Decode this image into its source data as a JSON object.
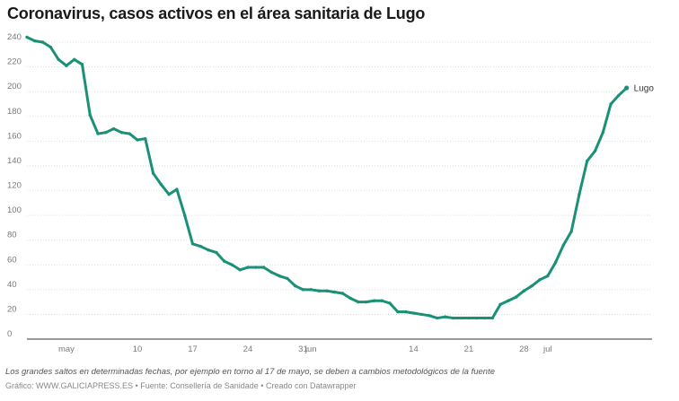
{
  "header": {
    "title": "Coronavirus, casos activos en el área sanitaria de Lugo"
  },
  "footer": {
    "note": "Los grandes saltos en determinadas fechas, por ejemplo en torno al 17 de mayo, se deben a cambios metodológicos de la fuente",
    "credit_prefix": "Gráfico: ",
    "credit_source": "WWW.GALICIAPRESS.ES",
    "credit_sep1": " • ",
    "credit_fuente": "Fuente: Consellería de Sanidade",
    "credit_sep2": " • ",
    "credit_tool": "Creado con Datawrapper"
  },
  "colors": {
    "line": "#1a9176",
    "grid": "#d9d9d9",
    "axis_text": "#7a7a7a",
    "label_text": "#333333"
  },
  "chart_data": {
    "type": "line",
    "title": "Coronavirus, casos activos en el área sanitaria de Lugo",
    "xlabel": "",
    "ylabel": "",
    "ylim": [
      0,
      240
    ],
    "yticks": [
      0,
      20,
      40,
      60,
      80,
      100,
      120,
      140,
      160,
      180,
      200,
      220,
      240
    ],
    "xlim": [
      "2020-04-26",
      "2020-07-14"
    ],
    "xticks": [
      {
        "date": "2020-05-01",
        "label": "may"
      },
      {
        "date": "2020-05-10",
        "label": "10"
      },
      {
        "date": "2020-05-17",
        "label": "17"
      },
      {
        "date": "2020-05-24",
        "label": "24"
      },
      {
        "date": "2020-05-31",
        "label": "31"
      },
      {
        "date": "2020-06-01",
        "label": "jun"
      },
      {
        "date": "2020-06-14",
        "label": "14"
      },
      {
        "date": "2020-06-21",
        "label": "21"
      },
      {
        "date": "2020-06-28",
        "label": "28"
      },
      {
        "date": "2020-07-01",
        "label": "jul"
      }
    ],
    "grid": true,
    "legend": "none",
    "series": [
      {
        "name": "Lugo",
        "points": [
          [
            "2020-04-26",
            244
          ],
          [
            "2020-04-27",
            241
          ],
          [
            "2020-04-28",
            240
          ],
          [
            "2020-04-29",
            236
          ],
          [
            "2020-04-30",
            226
          ],
          [
            "2020-05-01",
            221
          ],
          [
            "2020-05-02",
            226
          ],
          [
            "2020-05-03",
            222
          ],
          [
            "2020-05-04",
            181
          ],
          [
            "2020-05-05",
            166
          ],
          [
            "2020-05-06",
            167
          ],
          [
            "2020-05-07",
            170
          ],
          [
            "2020-05-08",
            167
          ],
          [
            "2020-05-09",
            166
          ],
          [
            "2020-05-10",
            161
          ],
          [
            "2020-05-11",
            162
          ],
          [
            "2020-05-12",
            134
          ],
          [
            "2020-05-13",
            125
          ],
          [
            "2020-05-14",
            117
          ],
          [
            "2020-05-15",
            121
          ],
          [
            "2020-05-16",
            100
          ],
          [
            "2020-05-17",
            77
          ],
          [
            "2020-05-18",
            75
          ],
          [
            "2020-05-19",
            72
          ],
          [
            "2020-05-20",
            70
          ],
          [
            "2020-05-21",
            63
          ],
          [
            "2020-05-22",
            60
          ],
          [
            "2020-05-23",
            56
          ],
          [
            "2020-05-24",
            58
          ],
          [
            "2020-05-25",
            58
          ],
          [
            "2020-05-26",
            58
          ],
          [
            "2020-05-27",
            54
          ],
          [
            "2020-05-28",
            51
          ],
          [
            "2020-05-29",
            49
          ],
          [
            "2020-05-30",
            43
          ],
          [
            "2020-05-31",
            40
          ],
          [
            "2020-06-01",
            40
          ],
          [
            "2020-06-02",
            39
          ],
          [
            "2020-06-03",
            39
          ],
          [
            "2020-06-04",
            38
          ],
          [
            "2020-06-05",
            37
          ],
          [
            "2020-06-06",
            33
          ],
          [
            "2020-06-07",
            30
          ],
          [
            "2020-06-08",
            30
          ],
          [
            "2020-06-09",
            31
          ],
          [
            "2020-06-10",
            31
          ],
          [
            "2020-06-11",
            29
          ],
          [
            "2020-06-12",
            22
          ],
          [
            "2020-06-13",
            22
          ],
          [
            "2020-06-14",
            21
          ],
          [
            "2020-06-15",
            20
          ],
          [
            "2020-06-16",
            19
          ],
          [
            "2020-06-17",
            17
          ],
          [
            "2020-06-18",
            18
          ],
          [
            "2020-06-19",
            17
          ],
          [
            "2020-06-20",
            17
          ],
          [
            "2020-06-21",
            17
          ],
          [
            "2020-06-22",
            17
          ],
          [
            "2020-06-23",
            17
          ],
          [
            "2020-06-24",
            17
          ],
          [
            "2020-06-25",
            28
          ],
          [
            "2020-06-26",
            31
          ],
          [
            "2020-06-27",
            34
          ],
          [
            "2020-06-28",
            39
          ],
          [
            "2020-06-29",
            43
          ],
          [
            "2020-06-30",
            48
          ],
          [
            "2020-07-01",
            51
          ],
          [
            "2020-07-02",
            62
          ],
          [
            "2020-07-03",
            76
          ],
          [
            "2020-07-04",
            87
          ],
          [
            "2020-07-05",
            117
          ],
          [
            "2020-07-06",
            144
          ],
          [
            "2020-07-07",
            152
          ],
          [
            "2020-07-08",
            167
          ],
          [
            "2020-07-09",
            190
          ],
          [
            "2020-07-10",
            197
          ],
          [
            "2020-07-11",
            203
          ]
        ]
      }
    ]
  }
}
